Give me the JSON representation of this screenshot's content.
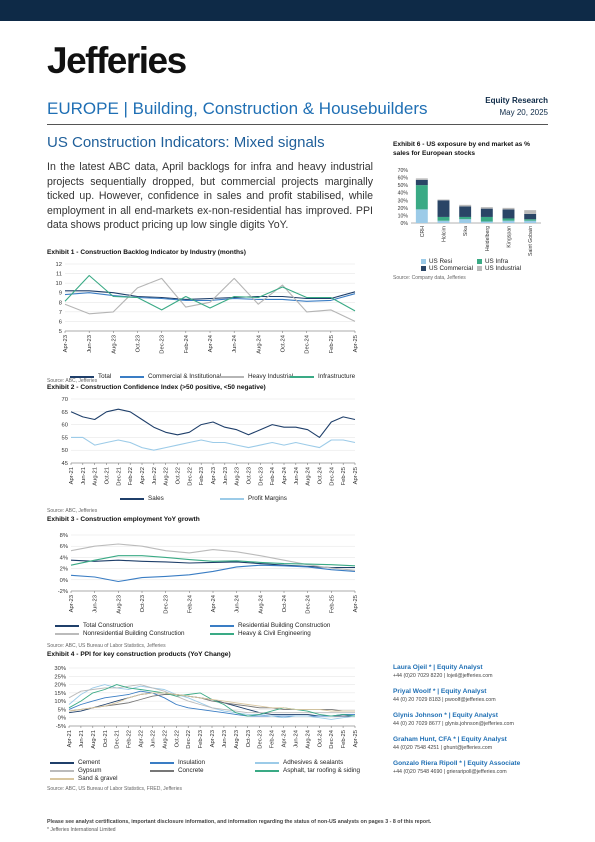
{
  "header": {
    "brand": "Jefferies",
    "section": "EUROPE | Building, Construction & Housebuilders",
    "doc_type": "Equity Research",
    "date": "May 20, 2025"
  },
  "headline": "US Construction Indicators: Mixed signals",
  "body_text": "In the latest ABC data, April backlogs for infra and heavy industrial projects sequentially dropped, but commercial projects marginally ticked up. However, confidence in sales and profit stabilised, while employment in all end-markets ex-non-residential has improved. PPI data shows product pricing up low single digits YoY.",
  "exhibits": {
    "ex1": {
      "title": "Exhibit 1 - Construction Backlog Indicator by Industry (months)",
      "source": "Source: ABC, Jefferies"
    },
    "ex2": {
      "title": "Exhibit 2 - Construction Confidence Index (>50 positive, <50 negative)",
      "source": "Source: ABC, Jefferies"
    },
    "ex3": {
      "title": "Exhibit 3 - Construction employment YoY growth",
      "source": "Source: ABC, US Bureau of Labor Statistics, Jefferies"
    },
    "ex4": {
      "title": "Exhibit 4 - PPI for key construction products (YoY Change)",
      "source": "Source: ABC, US Bureau of Labor Statistics, FRED, Jefferies"
    },
    "ex6": {
      "title": "Exhibit 6 - US exposure by end market as % sales for European stocks",
      "source": "Source: Company data, Jefferies"
    }
  },
  "colors": {
    "navy": "#0e2a47",
    "blue": "#1f6fb4",
    "green": "#3aaa85",
    "grey": "#aaaaaa",
    "lightblue": "#9ccbe8",
    "teal": "#1a8a8a"
  },
  "chart_data": [
    {
      "id": "ex1",
      "type": "line",
      "categories": [
        "Apr-23",
        "Jun-23",
        "Aug-23",
        "Oct-23",
        "Dec-23",
        "Feb-24",
        "Apr-24",
        "Jun-24",
        "Aug-24",
        "Oct-24",
        "Dec-24",
        "Feb-25",
        "Apr-25"
      ],
      "ylim": [
        5,
        12
      ],
      "yticks": [
        "5",
        "6",
        "7",
        "8",
        "9",
        "10",
        "11",
        "12"
      ],
      "series": [
        {
          "name": "Total",
          "color": "#1f3f6a",
          "values": [
            9.2,
            9.2,
            9.0,
            8.6,
            8.5,
            8.3,
            8.4,
            8.5,
            8.6,
            8.6,
            8.4,
            8.4,
            9.1
          ]
        },
        {
          "name": "Commercial & Institutional",
          "color": "#3a7dc4",
          "values": [
            8.8,
            9.0,
            8.7,
            8.5,
            8.4,
            8.2,
            8.2,
            8.4,
            8.3,
            8.3,
            8.1,
            8.2,
            8.9
          ]
        },
        {
          "name": "Heavy Industrial",
          "color": "#b5b5b5",
          "values": [
            7.8,
            6.8,
            7.0,
            9.5,
            10.5,
            7.5,
            8.0,
            10.5,
            7.8,
            9.8,
            7.0,
            7.2,
            6.0
          ]
        },
        {
          "name": "Infrastructure",
          "color": "#3aaa85",
          "values": [
            8.1,
            10.8,
            8.6,
            8.5,
            7.2,
            8.6,
            7.4,
            8.6,
            8.5,
            9.6,
            8.5,
            8.5,
            7.1
          ]
        }
      ]
    },
    {
      "id": "ex2",
      "type": "line",
      "categories": [
        "Apr-21",
        "Jun-21",
        "Aug-21",
        "Oct-21",
        "Dec-21",
        "Feb-22",
        "Apr-22",
        "Jun-22",
        "Aug-22",
        "Oct-22",
        "Dec-22",
        "Feb-23",
        "Apr-23",
        "Jun-23",
        "Aug-23",
        "Oct-23",
        "Dec-23",
        "Feb-24",
        "Apr-24",
        "Jun-24",
        "Aug-24",
        "Oct-24",
        "Dec-24",
        "Feb-25",
        "Apr-25"
      ],
      "ylim": [
        45,
        70
      ],
      "yticks": [
        "45",
        "50",
        "55",
        "60",
        "65",
        "70"
      ],
      "series": [
        {
          "name": "Sales",
          "color": "#1f3f6a",
          "values": [
            65,
            63,
            62,
            65,
            66,
            65,
            62,
            59,
            57,
            56,
            57,
            60,
            61,
            59,
            58,
            56,
            58,
            60,
            59,
            59,
            58,
            55,
            61,
            63,
            62
          ]
        },
        {
          "name": "Profit Margins",
          "color": "#9ccbe8",
          "values": [
            55,
            55,
            52,
            53,
            54,
            53,
            51,
            50,
            51,
            52,
            53,
            54,
            53,
            53,
            52,
            51,
            52,
            53,
            52,
            53,
            52,
            51,
            54,
            54,
            53
          ]
        }
      ]
    },
    {
      "id": "ex3",
      "type": "line",
      "categories": [
        "Apr-23",
        "Jun-23",
        "Aug-23",
        "Oct-23",
        "Dec-23",
        "Feb-24",
        "Apr-24",
        "Jun-24",
        "Aug-24",
        "Oct-24",
        "Dec-24",
        "Feb-25",
        "Apr-25"
      ],
      "ylim": [
        -2,
        8
      ],
      "yticks": [
        "-2%",
        "0%",
        "2%",
        "4%",
        "6%",
        "8%"
      ],
      "series": [
        {
          "name": "Total Construction",
          "color": "#1f3f6a",
          "values": [
            3.5,
            3.3,
            3.5,
            3.3,
            3.2,
            3.0,
            3.1,
            3.2,
            2.9,
            2.6,
            2.4,
            2.2,
            2.2
          ]
        },
        {
          "name": "Residential Building Construction",
          "color": "#3a7dc4",
          "values": [
            0.8,
            0.5,
            -0.3,
            0.4,
            0.6,
            0.9,
            1.5,
            2.3,
            2.6,
            2.5,
            2.3,
            1.8,
            1.5
          ]
        },
        {
          "name": "Nonresidential Building Construction",
          "color": "#bbbbbb",
          "values": [
            5.2,
            6.0,
            6.4,
            6.0,
            5.2,
            4.8,
            5.4,
            5.0,
            4.3,
            3.5,
            2.7,
            2.1,
            1.7
          ]
        },
        {
          "name": "Heavy & Civil Engineering",
          "color": "#3aaa85",
          "values": [
            2.6,
            3.5,
            4.3,
            4.3,
            4.0,
            3.6,
            3.3,
            3.4,
            3.1,
            2.9,
            2.8,
            2.7,
            2.5
          ]
        }
      ]
    },
    {
      "id": "ex4",
      "type": "line",
      "categories": [
        "Apr-21",
        "Jun-21",
        "Aug-21",
        "Oct-21",
        "Dec-21",
        "Feb-22",
        "Apr-22",
        "Jun-22",
        "Aug-22",
        "Oct-22",
        "Dec-22",
        "Feb-23",
        "Apr-23",
        "Jun-23",
        "Aug-23",
        "Oct-23",
        "Dec-23",
        "Feb-24",
        "Apr-24",
        "Jun-24",
        "Aug-24",
        "Oct-24",
        "Dec-24",
        "Feb-25",
        "Apr-25"
      ],
      "ylim": [
        -5,
        30
      ],
      "yticks": [
        "-5%",
        "0%",
        "5%",
        "10%",
        "15%",
        "20%",
        "25%",
        "30%"
      ],
      "series": [
        {
          "name": "Cement",
          "color": "#1f3f6a",
          "values": [
            3,
            4,
            6,
            8,
            10,
            12,
            14,
            15,
            15,
            14,
            13,
            12,
            11,
            9,
            7,
            5,
            3,
            2,
            2,
            2,
            2,
            1,
            1,
            1,
            1
          ]
        },
        {
          "name": "Insulation",
          "color": "#3a7dc4",
          "values": [
            5,
            8,
            10,
            12,
            13,
            14,
            16,
            15,
            12,
            8,
            6,
            5,
            4,
            3,
            2,
            1,
            1,
            1,
            1,
            1,
            1,
            1,
            1,
            2,
            2
          ]
        },
        {
          "name": "Adhesives & sealants",
          "color": "#9ccbe8",
          "values": [
            8,
            14,
            18,
            20,
            18,
            17,
            19,
            18,
            17,
            14,
            12,
            9,
            6,
            4,
            3,
            2,
            2,
            1,
            0,
            1,
            1,
            0,
            -1,
            0,
            1
          ]
        },
        {
          "name": "Gypsum",
          "color": "#bbbbbb",
          "values": [
            12,
            16,
            17,
            18,
            18,
            19,
            20,
            18,
            16,
            13,
            10,
            8,
            6,
            5,
            4,
            3,
            3,
            3,
            3,
            3,
            3,
            3,
            3,
            3,
            3
          ]
        },
        {
          "name": "Concrete",
          "color": "#777777",
          "values": [
            4,
            5,
            6,
            7,
            8,
            9,
            11,
            13,
            14,
            14,
            13,
            12,
            10,
            9,
            8,
            7,
            6,
            6,
            5,
            5,
            5,
            5,
            5,
            4,
            4
          ]
        },
        {
          "name": "Asphalt, tar roofing & siding",
          "color": "#3aaa85",
          "values": [
            6,
            10,
            15,
            17,
            20,
            18,
            17,
            16,
            15,
            13,
            14,
            15,
            11,
            8,
            3,
            1,
            2,
            4,
            6,
            5,
            4,
            2,
            1,
            2,
            1
          ]
        },
        {
          "name": "Sand & gravel",
          "color": "#d9c7a0",
          "values": [
            4,
            5,
            6,
            7,
            9,
            12,
            14,
            15,
            15,
            14,
            13,
            12,
            11,
            10,
            9,
            8,
            7,
            6,
            6,
            5,
            5,
            5,
            4,
            4,
            4
          ]
        }
      ]
    },
    {
      "id": "ex6",
      "type": "bar",
      "stacked": true,
      "categories": [
        "CRH",
        "Holcim",
        "Sika",
        "Heidelberg",
        "Kingspan",
        "Saint Gobain"
      ],
      "ylim": [
        0,
        70
      ],
      "yticks": [
        "0%",
        "10%",
        "20%",
        "30%",
        "40%",
        "50%",
        "60%",
        "70%"
      ],
      "series": [
        {
          "name": "US Resi",
          "color": "#9ccbe8",
          "values": [
            18,
            3,
            5,
            2,
            3,
            3
          ]
        },
        {
          "name": "US Infra",
          "color": "#3aaa85",
          "values": [
            32,
            5,
            3,
            6,
            3,
            2
          ]
        },
        {
          "name": "US Commercial",
          "color": "#2a4566",
          "values": [
            7,
            22,
            14,
            11,
            12,
            7
          ]
        },
        {
          "name": "US Industrial",
          "color": "#bbbbbb",
          "values": [
            2,
            1,
            2,
            2,
            2,
            5
          ]
        }
      ]
    }
  ],
  "legends": {
    "ex1": [
      "Total",
      "Commercial & Institutional",
      "Heavy Industrial",
      "Infrastructure"
    ],
    "ex2": [
      "Sales",
      "Profit Margins"
    ],
    "ex3": [
      "Total Construction",
      "Residential Building Construction",
      "Nonresidential Building Construction",
      "Heavy & Civil Engineering"
    ],
    "ex4": [
      "Cement",
      "Insulation",
      "Adhesives & sealants",
      "Gypsum",
      "Concrete",
      "Asphalt, tar roofing & siding",
      "Sand & gravel"
    ],
    "ex6": [
      "US Resi",
      "US Infra",
      "US Commercial",
      "US Industrial"
    ]
  },
  "analysts": [
    {
      "name": "Laura Ojeil * | Equity Analyst",
      "contact": "+44 (0)20 7029 8220 | lojeil@jefferies.com"
    },
    {
      "name": "Priyal Woolf * | Equity Analyst",
      "contact": "44 (0) 20 7029 8183 | pwoolf@jefferies.com"
    },
    {
      "name": "Glynis Johnson * | Equity Analyst",
      "contact": "44 (0) 20 7029 8677 | glynis.johnson@jefferies.com"
    },
    {
      "name": "Graham Hunt, CFA * | Equity Analyst",
      "contact": "44 (0)20 7548 4251 | ghunt@jefferies.com"
    },
    {
      "name": "Gonzalo Riera Ripoll * | Equity Associate",
      "contact": "+44 (0)20 7548 4690 | grieraripoll@jefferies.com"
    }
  ],
  "footer": {
    "disclaimer": "Please see analyst certifications, important disclosure information, and information regarding the status of non-US analysts on pages 3 - 8 of this report.",
    "footnote": "* Jefferies International Limited"
  }
}
